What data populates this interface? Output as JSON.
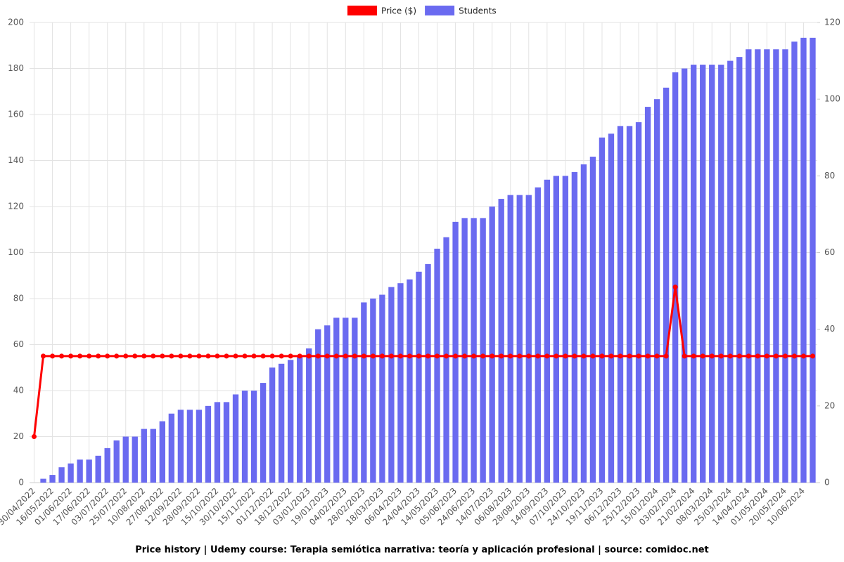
{
  "chart_data": {
    "type": "bar-line",
    "title": "Price history | Udemy course: Terapia semiótica narrativa: teoría y aplicación profesional | source: comidoc.net",
    "categories": [
      "30/04/2022",
      null,
      "16/05/2022",
      null,
      "01/06/2022",
      null,
      "17/06/2022",
      null,
      "03/07/2022",
      null,
      "25/07/2022",
      null,
      "10/08/2022",
      null,
      "27/08/2022",
      null,
      "12/09/2022",
      null,
      "28/09/2022",
      null,
      "15/10/2022",
      null,
      "30/10/2022",
      null,
      "15/11/2022",
      null,
      "01/12/2022",
      null,
      "18/12/2022",
      null,
      "03/01/2023",
      null,
      "19/01/2023",
      null,
      "04/02/2023",
      null,
      "28/02/2023",
      null,
      "18/03/2023",
      null,
      "06/04/2023",
      null,
      "24/04/2023",
      null,
      "14/05/2023",
      null,
      "05/06/2023",
      null,
      "24/06/2023",
      null,
      "14/07/2023",
      null,
      "06/08/2023",
      null,
      "28/08/2023",
      null,
      "14/09/2023",
      null,
      "07/10/2023",
      null,
      "24/10/2023",
      null,
      "19/11/2023",
      null,
      "06/12/2023",
      null,
      "25/12/2023",
      null,
      "15/01/2024",
      null,
      "03/02/2024",
      null,
      "21/02/2024",
      null,
      "08/03/2024",
      null,
      "25/03/2024",
      null,
      "14/04/2024",
      null,
      "01/05/2024",
      null,
      "20/05/2024",
      null,
      "10/06/2024",
      null
    ],
    "series": [
      {
        "name": "Price ($)",
        "type": "line",
        "color": "#ff0000",
        "values": [
          20,
          55,
          55,
          55,
          55,
          55,
          55,
          55,
          55,
          55,
          55,
          55,
          55,
          55,
          55,
          55,
          55,
          55,
          55,
          55,
          55,
          55,
          55,
          55,
          55,
          55,
          55,
          55,
          55,
          55,
          55,
          55,
          55,
          55,
          55,
          55,
          55,
          55,
          55,
          55,
          55,
          55,
          55,
          55,
          55,
          55,
          55,
          55,
          55,
          55,
          55,
          55,
          55,
          55,
          55,
          55,
          55,
          55,
          55,
          55,
          55,
          55,
          55,
          55,
          55,
          55,
          55,
          55,
          55,
          55,
          85,
          55,
          55,
          55,
          55,
          55,
          55,
          55,
          55,
          55,
          55,
          55,
          55,
          55,
          55,
          55
        ]
      },
      {
        "name": "Students",
        "type": "bar",
        "axis": "y2",
        "color": "#6a6af0",
        "values": [
          0,
          1,
          2,
          4,
          5,
          6,
          6,
          7,
          9,
          11,
          12,
          12,
          14,
          14,
          16,
          18,
          19,
          19,
          19,
          20,
          21,
          21,
          23,
          24,
          24,
          26,
          30,
          31,
          32,
          33,
          35,
          40,
          41,
          43,
          43,
          43,
          47,
          48,
          49,
          51,
          52,
          53,
          55,
          57,
          61,
          64,
          68,
          69,
          69,
          69,
          72,
          74,
          75,
          75,
          75,
          77,
          79,
          80,
          80,
          81,
          83,
          85,
          90,
          91,
          93,
          93,
          94,
          98,
          100,
          103,
          107,
          108,
          109,
          109,
          109,
          109,
          110,
          111,
          113,
          113,
          113,
          113,
          113,
          115,
          116,
          116
        ]
      }
    ],
    "ylim": [
      0,
      200
    ],
    "yticks": [
      0,
      20,
      40,
      60,
      80,
      100,
      120,
      140,
      160,
      180,
      200
    ],
    "y2lim": [
      0,
      120
    ],
    "y2ticks": [
      0,
      20,
      40,
      60,
      80,
      100,
      120
    ],
    "grid": true,
    "legend": "top"
  }
}
